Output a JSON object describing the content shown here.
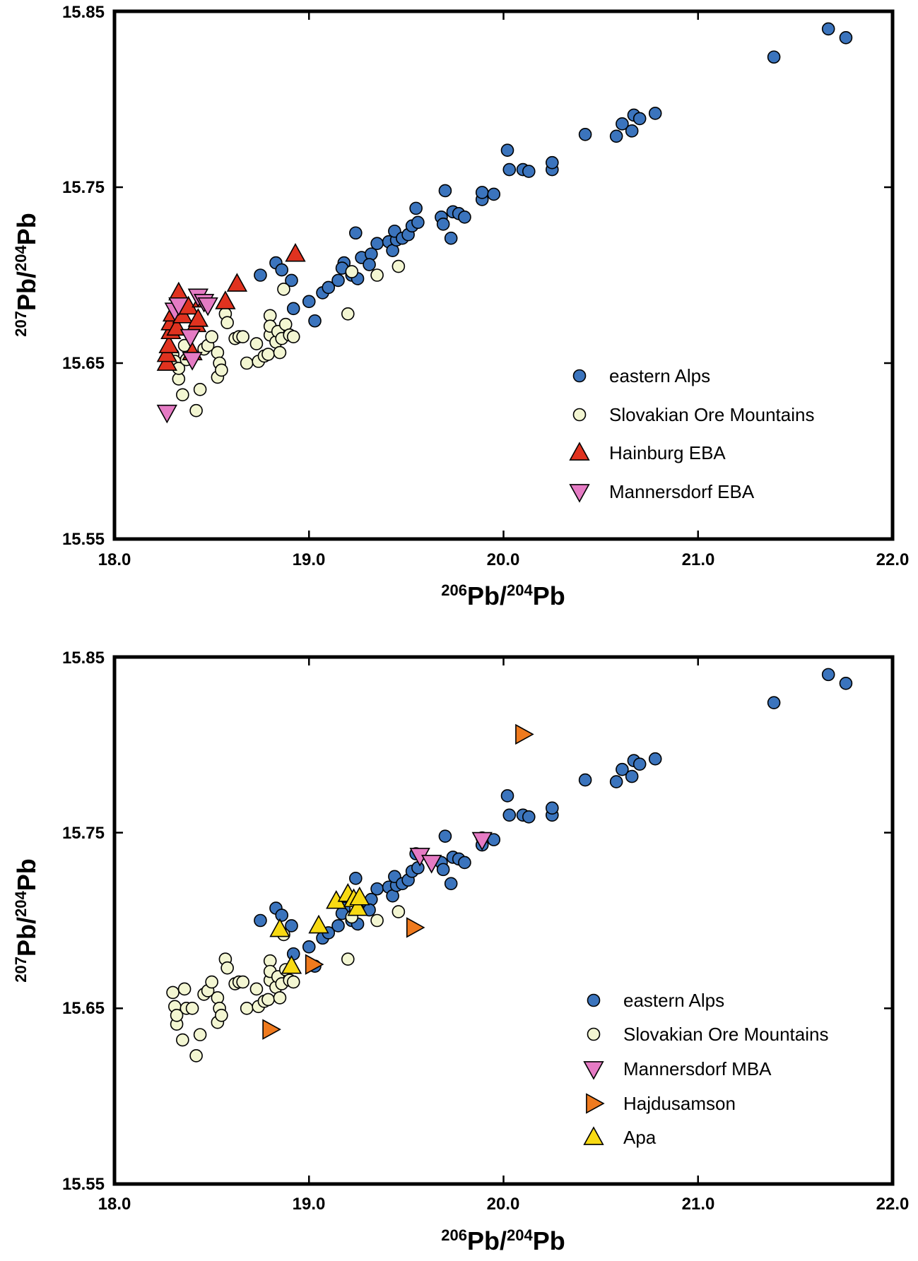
{
  "styles": {
    "eastern_alps": {
      "marker": "circle",
      "fill": "#3b74bd"
    },
    "slovakian_ore": {
      "marker": "circle",
      "fill": "#f3f6d2"
    },
    "hainburg_eba": {
      "marker": "triangle-up",
      "fill": "#e0321f"
    },
    "mannersdorf": {
      "marker": "triangle-down",
      "fill": "#e57bc4"
    },
    "hajdusamson": {
      "marker": "triangle-right",
      "fill": "#ef7a1e"
    },
    "apa": {
      "marker": "triangle-up",
      "fill": "#f8da13"
    }
  },
  "chart_data": [
    {
      "type": "scatter",
      "id": "top",
      "xlabel": {
        "base1": "206",
        "text1": "Pb/",
        "base2": "204",
        "text2": "Pb"
      },
      "ylabel": {
        "base1": "207",
        "text1": "Pb/",
        "base2": "204",
        "text2": "Pb"
      },
      "xlim": [
        18.0,
        22.0
      ],
      "ylim": [
        15.55,
        15.85
      ],
      "xticks": [
        "18.0",
        "19.0",
        "20.0",
        "21.0",
        "22.0"
      ],
      "yticks": [
        "15.55",
        "15.65",
        "15.75",
        "15.85"
      ],
      "legend_position": "bottom-right",
      "series": [
        {
          "name": "eastern Alps",
          "style": "eastern_alps",
          "points": [
            [
              18.75,
              15.7
            ],
            [
              18.83,
              15.707
            ],
            [
              18.86,
              15.703
            ],
            [
              18.91,
              15.697
            ],
            [
              18.92,
              15.681
            ],
            [
              19.03,
              15.674
            ],
            [
              19.0,
              15.685
            ],
            [
              19.07,
              15.69
            ],
            [
              19.1,
              15.693
            ],
            [
              19.15,
              15.697
            ],
            [
              19.18,
              15.707
            ],
            [
              19.22,
              15.7
            ],
            [
              19.17,
              15.704
            ],
            [
              19.25,
              15.698
            ],
            [
              19.24,
              15.724
            ],
            [
              19.27,
              15.71
            ],
            [
              19.32,
              15.712
            ],
            [
              19.31,
              15.706
            ],
            [
              19.35,
              15.718
            ],
            [
              19.41,
              15.719
            ],
            [
              19.43,
              15.714
            ],
            [
              19.45,
              15.72
            ],
            [
              19.44,
              15.725
            ],
            [
              19.48,
              15.721
            ],
            [
              19.51,
              15.723
            ],
            [
              19.53,
              15.728
            ],
            [
              19.56,
              15.73
            ],
            [
              19.55,
              15.738
            ],
            [
              19.68,
              15.733
            ],
            [
              19.69,
              15.729
            ],
            [
              19.7,
              15.748
            ],
            [
              19.73,
              15.721
            ],
            [
              19.74,
              15.736
            ],
            [
              19.77,
              15.735
            ],
            [
              19.8,
              15.733
            ],
            [
              19.89,
              15.743
            ],
            [
              19.89,
              15.747
            ],
            [
              19.95,
              15.746
            ],
            [
              20.02,
              15.771
            ],
            [
              20.03,
              15.76
            ],
            [
              20.1,
              15.76
            ],
            [
              20.13,
              15.759
            ],
            [
              20.25,
              15.76
            ],
            [
              20.25,
              15.764
            ],
            [
              20.42,
              15.78
            ],
            [
              20.58,
              15.779
            ],
            [
              20.61,
              15.786
            ],
            [
              20.66,
              15.782
            ],
            [
              20.67,
              15.791
            ],
            [
              20.7,
              15.789
            ],
            [
              20.78,
              15.792
            ],
            [
              21.39,
              15.824
            ],
            [
              21.67,
              15.84
            ],
            [
              21.76,
              15.835
            ]
          ]
        },
        {
          "name": "Slovakian Ore Mountains",
          "style": "slovakian_ore",
          "points": [
            [
              18.3,
              15.655
            ],
            [
              18.31,
              15.651
            ],
            [
              18.33,
              15.641
            ],
            [
              18.33,
              15.647
            ],
            [
              18.36,
              15.66
            ],
            [
              18.37,
              15.652
            ],
            [
              18.35,
              15.632
            ],
            [
              18.42,
              15.623
            ],
            [
              18.44,
              15.635
            ],
            [
              18.46,
              15.658
            ],
            [
              18.48,
              15.66
            ],
            [
              18.5,
              15.665
            ],
            [
              18.53,
              15.656
            ],
            [
              18.54,
              15.65
            ],
            [
              18.53,
              15.642
            ],
            [
              18.55,
              15.646
            ],
            [
              18.57,
              15.678
            ],
            [
              18.58,
              15.673
            ],
            [
              18.62,
              15.664
            ],
            [
              18.64,
              15.665
            ],
            [
              18.66,
              15.665
            ],
            [
              18.68,
              15.65
            ],
            [
              18.73,
              15.661
            ],
            [
              18.74,
              15.651
            ],
            [
              18.77,
              15.654
            ],
            [
              18.79,
              15.655
            ],
            [
              18.8,
              15.666
            ],
            [
              18.8,
              15.677
            ],
            [
              18.8,
              15.671
            ],
            [
              18.83,
              15.662
            ],
            [
              18.84,
              15.668
            ],
            [
              18.86,
              15.664
            ],
            [
              18.85,
              15.656
            ],
            [
              18.88,
              15.672
            ],
            [
              18.87,
              15.692
            ],
            [
              18.9,
              15.666
            ],
            [
              18.92,
              15.665
            ],
            [
              19.2,
              15.678
            ],
            [
              19.22,
              15.702
            ],
            [
              19.35,
              15.7
            ],
            [
              19.46,
              15.705
            ]
          ]
        },
        {
          "name": "Hainburg EBA",
          "style": "hainburg_eba",
          "points": [
            [
              18.27,
              15.65
            ],
            [
              18.27,
              15.655
            ],
            [
              18.28,
              15.66
            ],
            [
              18.29,
              15.668
            ],
            [
              18.29,
              15.673
            ],
            [
              18.3,
              15.678
            ],
            [
              18.32,
              15.67
            ],
            [
              18.33,
              15.69
            ],
            [
              18.35,
              15.677
            ],
            [
              18.38,
              15.682
            ],
            [
              18.4,
              15.656
            ],
            [
              18.42,
              15.672
            ],
            [
              18.43,
              15.675
            ],
            [
              18.45,
              15.686
            ],
            [
              18.57,
              15.685
            ],
            [
              18.63,
              15.695
            ],
            [
              18.93,
              15.712
            ]
          ]
        },
        {
          "name": "Mannersdorf EBA",
          "style": "mannersdorf",
          "points": [
            [
              18.27,
              15.622
            ],
            [
              18.31,
              15.68
            ],
            [
              18.33,
              15.683
            ],
            [
              18.39,
              15.665
            ],
            [
              18.4,
              15.652
            ],
            [
              18.43,
              15.688
            ],
            [
              18.46,
              15.685
            ],
            [
              18.48,
              15.683
            ]
          ]
        }
      ]
    },
    {
      "type": "scatter",
      "id": "bottom",
      "xlabel": {
        "base1": "206",
        "text1": "Pb/",
        "base2": "204",
        "text2": "Pb"
      },
      "ylabel": {
        "base1": "207",
        "text1": "Pb/",
        "base2": "204",
        "text2": "Pb"
      },
      "xlim": [
        18.0,
        22.0
      ],
      "ylim": [
        15.55,
        15.85
      ],
      "xticks": [
        "18.0",
        "19.0",
        "20.0",
        "21.0",
        "22.0"
      ],
      "yticks": [
        "15.55",
        "15.65",
        "15.75",
        "15.85"
      ],
      "legend_position": "bottom-right",
      "series": [
        {
          "name": "eastern Alps",
          "style": "eastern_alps",
          "points": [
            [
              18.75,
              15.7
            ],
            [
              18.83,
              15.707
            ],
            [
              18.86,
              15.703
            ],
            [
              18.91,
              15.697
            ],
            [
              18.92,
              15.681
            ],
            [
              19.03,
              15.674
            ],
            [
              19.0,
              15.685
            ],
            [
              19.07,
              15.69
            ],
            [
              19.1,
              15.693
            ],
            [
              19.15,
              15.697
            ],
            [
              19.18,
              15.707
            ],
            [
              19.22,
              15.7
            ],
            [
              19.17,
              15.704
            ],
            [
              19.25,
              15.698
            ],
            [
              19.24,
              15.724
            ],
            [
              19.27,
              15.71
            ],
            [
              19.32,
              15.712
            ],
            [
              19.31,
              15.706
            ],
            [
              19.35,
              15.718
            ],
            [
              19.41,
              15.719
            ],
            [
              19.43,
              15.714
            ],
            [
              19.45,
              15.72
            ],
            [
              19.44,
              15.725
            ],
            [
              19.48,
              15.721
            ],
            [
              19.51,
              15.723
            ],
            [
              19.53,
              15.728
            ],
            [
              19.56,
              15.73
            ],
            [
              19.55,
              15.738
            ],
            [
              19.68,
              15.733
            ],
            [
              19.69,
              15.729
            ],
            [
              19.7,
              15.748
            ],
            [
              19.73,
              15.721
            ],
            [
              19.74,
              15.736
            ],
            [
              19.77,
              15.735
            ],
            [
              19.8,
              15.733
            ],
            [
              19.89,
              15.743
            ],
            [
              19.89,
              15.747
            ],
            [
              19.95,
              15.746
            ],
            [
              20.02,
              15.771
            ],
            [
              20.03,
              15.76
            ],
            [
              20.1,
              15.76
            ],
            [
              20.13,
              15.759
            ],
            [
              20.25,
              15.76
            ],
            [
              20.25,
              15.764
            ],
            [
              20.42,
              15.78
            ],
            [
              20.58,
              15.779
            ],
            [
              20.61,
              15.786
            ],
            [
              20.66,
              15.782
            ],
            [
              20.67,
              15.791
            ],
            [
              20.7,
              15.789
            ],
            [
              20.78,
              15.792
            ],
            [
              21.39,
              15.824
            ],
            [
              21.67,
              15.84
            ],
            [
              21.76,
              15.835
            ]
          ]
        },
        {
          "name": "Slovakian Ore Mountains",
          "style": "slovakian_ore",
          "points": [
            [
              18.3,
              15.659
            ],
            [
              18.31,
              15.651
            ],
            [
              18.32,
              15.641
            ],
            [
              18.32,
              15.646
            ],
            [
              18.36,
              15.661
            ],
            [
              18.37,
              15.65
            ],
            [
              18.35,
              15.632
            ],
            [
              18.4,
              15.65
            ],
            [
              18.42,
              15.623
            ],
            [
              18.44,
              15.635
            ],
            [
              18.46,
              15.658
            ],
            [
              18.48,
              15.66
            ],
            [
              18.5,
              15.665
            ],
            [
              18.53,
              15.656
            ],
            [
              18.54,
              15.65
            ],
            [
              18.53,
              15.642
            ],
            [
              18.55,
              15.646
            ],
            [
              18.57,
              15.678
            ],
            [
              18.58,
              15.673
            ],
            [
              18.62,
              15.664
            ],
            [
              18.64,
              15.665
            ],
            [
              18.66,
              15.665
            ],
            [
              18.68,
              15.65
            ],
            [
              18.73,
              15.661
            ],
            [
              18.74,
              15.651
            ],
            [
              18.77,
              15.654
            ],
            [
              18.79,
              15.655
            ],
            [
              18.8,
              15.666
            ],
            [
              18.8,
              15.677
            ],
            [
              18.8,
              15.671
            ],
            [
              18.83,
              15.662
            ],
            [
              18.84,
              15.668
            ],
            [
              18.86,
              15.664
            ],
            [
              18.85,
              15.656
            ],
            [
              18.88,
              15.672
            ],
            [
              18.87,
              15.692
            ],
            [
              18.9,
              15.666
            ],
            [
              18.92,
              15.665
            ],
            [
              19.2,
              15.678
            ],
            [
              19.22,
              15.702
            ],
            [
              19.35,
              15.7
            ],
            [
              19.46,
              15.705
            ]
          ]
        },
        {
          "name": "Mannersdorf MBA",
          "style": "mannersdorf",
          "points": [
            [
              19.57,
              15.737
            ],
            [
              19.63,
              15.733
            ],
            [
              19.89,
              15.746
            ]
          ]
        },
        {
          "name": "Hajdusamson",
          "style": "hajdusamson",
          "points": [
            [
              18.8,
              15.638
            ],
            [
              19.02,
              15.675
            ],
            [
              19.54,
              15.696
            ],
            [
              20.1,
              15.806
            ]
          ]
        },
        {
          "name": "Apa",
          "style": "apa",
          "points": [
            [
              18.85,
              15.695
            ],
            [
              18.91,
              15.674
            ],
            [
              19.05,
              15.697
            ],
            [
              19.14,
              15.711
            ],
            [
              19.2,
              15.715
            ],
            [
              19.23,
              15.712
            ],
            [
              19.25,
              15.707
            ],
            [
              19.26,
              15.713
            ]
          ]
        }
      ]
    }
  ]
}
